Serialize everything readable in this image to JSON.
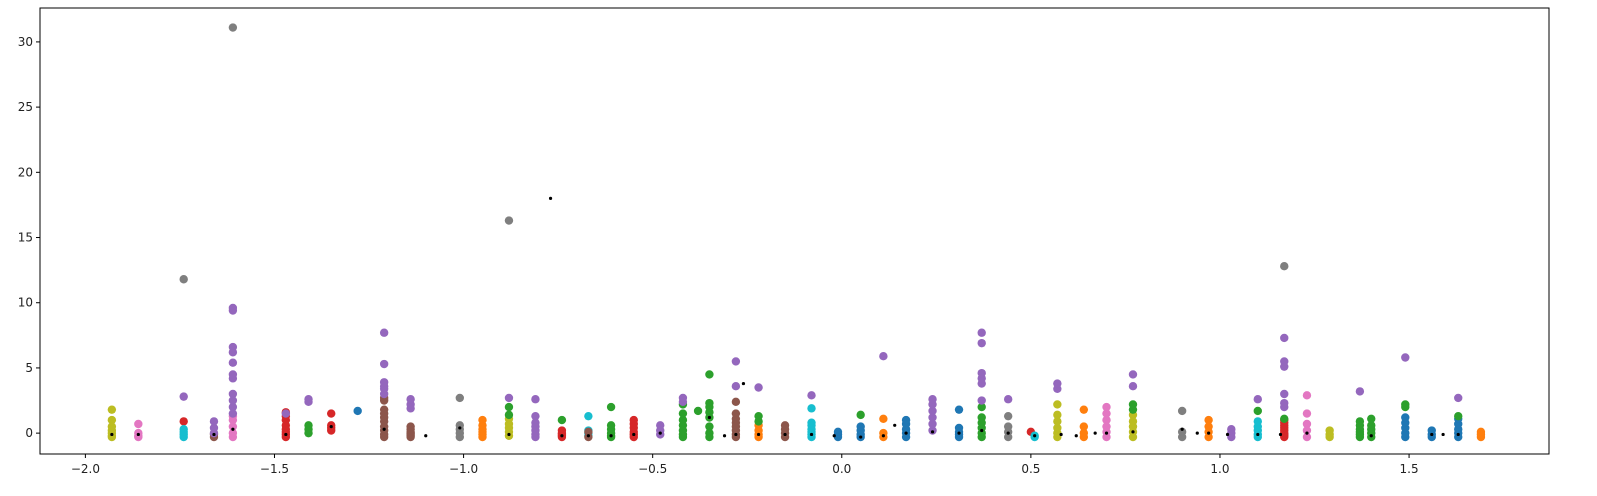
{
  "chart_data": {
    "type": "scatter",
    "title": "",
    "xlabel": "",
    "ylabel": "",
    "xlim": [
      -2.12,
      1.87
    ],
    "ylim": [
      -1.6,
      32.6
    ],
    "x_ticks": [
      -2.0,
      -1.5,
      -1.0,
      -0.5,
      0.0,
      0.5,
      1.0,
      1.5
    ],
    "x_tick_labels": [
      "−2.0",
      "−1.5",
      "−1.0",
      "−0.5",
      "0.0",
      "0.5",
      "1.0",
      "1.5"
    ],
    "y_ticks": [
      0,
      5,
      10,
      15,
      20,
      25,
      30
    ],
    "y_tick_labels": [
      "0",
      "5",
      "10",
      "15",
      "20",
      "25",
      "30"
    ],
    "grid": false,
    "legend": false,
    "palette": [
      "#1f77b4",
      "#ff7f0e",
      "#2ca02c",
      "#d62728",
      "#9467bd",
      "#8c564b",
      "#e377c2",
      "#7f7f7f",
      "#bcbd22",
      "#17becf"
    ],
    "groups": [
      {
        "x": -1.93,
        "color": "#bcbd22",
        "y": [
          -0.3,
          -0.2,
          0.0,
          0.2,
          0.5,
          1.0,
          1.8
        ]
      },
      {
        "x": -1.86,
        "color": "#e377c2",
        "y": [
          -0.3,
          -0.25,
          -0.2,
          0.0,
          0.7
        ]
      },
      {
        "x": -1.74,
        "color": "#d62728",
        "y": [
          0.9
        ]
      },
      {
        "x": -1.74,
        "color": "#17becf",
        "y": [
          -0.3,
          -0.1,
          0.1,
          0.3
        ]
      },
      {
        "x": -1.74,
        "color": "#9467bd",
        "y": [
          2.8
        ]
      },
      {
        "x": -1.74,
        "color": "#7f7f7f",
        "y": [
          11.8
        ]
      },
      {
        "x": -1.66,
        "color": "#8c564b",
        "y": [
          -0.3,
          -0.1
        ]
      },
      {
        "x": -1.66,
        "color": "#9467bd",
        "y": [
          0.0,
          0.4,
          0.9
        ]
      },
      {
        "x": -1.61,
        "color": "#e377c2",
        "y": [
          -0.3,
          0.0,
          0.5,
          1.0,
          1.3
        ]
      },
      {
        "x": -1.61,
        "color": "#9467bd",
        "y": [
          1.5,
          2.0,
          2.5,
          3.0,
          4.2,
          4.5,
          5.4,
          6.2,
          6.6,
          9.4,
          9.6
        ]
      },
      {
        "x": -1.61,
        "color": "#7f7f7f",
        "y": [
          31.1
        ]
      },
      {
        "x": -1.47,
        "color": "#d62728",
        "y": [
          -0.3,
          -0.1,
          0.1,
          0.3,
          0.6,
          1.0,
          1.3,
          1.6
        ]
      },
      {
        "x": -1.47,
        "color": "#9467bd",
        "y": [
          1.5
        ]
      },
      {
        "x": -1.41,
        "color": "#2ca02c",
        "y": [
          0.0,
          0.3,
          0.6
        ]
      },
      {
        "x": -1.41,
        "color": "#9467bd",
        "y": [
          2.4,
          2.6
        ]
      },
      {
        "x": -1.35,
        "color": "#d62728",
        "y": [
          0.2,
          0.4,
          0.6,
          1.5
        ]
      },
      {
        "x": -1.28,
        "color": "#1f77b4",
        "y": [
          1.7
        ]
      },
      {
        "x": -1.21,
        "color": "#8c564b",
        "y": [
          -0.3,
          -0.1,
          0.2,
          0.5,
          0.9,
          1.2,
          1.5,
          1.8,
          2.5,
          2.7
        ]
      },
      {
        "x": -1.21,
        "color": "#9467bd",
        "y": [
          3.0,
          3.4,
          3.6,
          3.9,
          5.3,
          7.7
        ]
      },
      {
        "x": -1.14,
        "color": "#8c564b",
        "y": [
          -0.3,
          -0.2,
          -0.1,
          0.0,
          0.1,
          0.3,
          0.5
        ]
      },
      {
        "x": -1.14,
        "color": "#9467bd",
        "y": [
          1.9,
          2.2,
          2.6
        ]
      },
      {
        "x": -1.01,
        "color": "#7f7f7f",
        "y": [
          -0.3,
          0.0,
          0.3,
          0.6,
          2.7
        ]
      },
      {
        "x": -0.95,
        "color": "#ff7f0e",
        "y": [
          -0.3,
          -0.1,
          0.1,
          0.3,
          0.6,
          1.0
        ]
      },
      {
        "x": -0.88,
        "color": "#bcbd22",
        "y": [
          -0.2,
          0.1,
          0.4,
          0.7,
          1.1
        ]
      },
      {
        "x": -0.88,
        "color": "#2ca02c",
        "y": [
          1.4,
          2.0
        ]
      },
      {
        "x": -0.88,
        "color": "#9467bd",
        "y": [
          2.7
        ]
      },
      {
        "x": -0.88,
        "color": "#7f7f7f",
        "y": [
          16.3
        ]
      },
      {
        "x": -0.81,
        "color": "#9467bd",
        "y": [
          -0.3,
          -0.1,
          0.2,
          0.5,
          0.8,
          1.3,
          2.6
        ]
      },
      {
        "x": -0.74,
        "color": "#d62728",
        "y": [
          -0.3,
          -0.2,
          -0.1,
          0.0,
          0.2
        ]
      },
      {
        "x": -0.74,
        "color": "#2ca02c",
        "y": [
          1.0
        ]
      },
      {
        "x": -0.67,
        "color": "#17becf",
        "y": [
          -0.2,
          0.0,
          0.2,
          1.3
        ]
      },
      {
        "x": -0.67,
        "color": "#8c564b",
        "y": [
          -0.3,
          0.1
        ]
      },
      {
        "x": -0.61,
        "color": "#2ca02c",
        "y": [
          -0.3,
          -0.2,
          0.0,
          0.3,
          0.6,
          2.0
        ]
      },
      {
        "x": -0.55,
        "color": "#d62728",
        "y": [
          -0.3,
          -0.1,
          0.1,
          0.4,
          0.7,
          1.0
        ]
      },
      {
        "x": -0.48,
        "color": "#9467bd",
        "y": [
          -0.1,
          0.2,
          0.6
        ]
      },
      {
        "x": -0.42,
        "color": "#2ca02c",
        "y": [
          -0.3,
          -0.1,
          0.2,
          0.6,
          1.0,
          1.5,
          2.2
        ]
      },
      {
        "x": -0.42,
        "color": "#9467bd",
        "y": [
          2.4,
          2.7
        ]
      },
      {
        "x": -0.38,
        "color": "#2ca02c",
        "y": [
          1.7
        ]
      },
      {
        "x": -0.35,
        "color": "#2ca02c",
        "y": [
          -0.3,
          0.0,
          0.5,
          1.2,
          1.6,
          2.0,
          2.3,
          4.5
        ]
      },
      {
        "x": -0.28,
        "color": "#8c564b",
        "y": [
          -0.3,
          -0.1,
          0.2,
          0.5,
          0.8,
          1.1,
          1.5,
          2.4
        ]
      },
      {
        "x": -0.28,
        "color": "#9467bd",
        "y": [
          3.6,
          5.5
        ]
      },
      {
        "x": -0.22,
        "color": "#ff7f0e",
        "y": [
          -0.3,
          -0.1,
          0.2,
          0.6
        ]
      },
      {
        "x": -0.22,
        "color": "#2ca02c",
        "y": [
          0.9,
          1.3
        ]
      },
      {
        "x": -0.22,
        "color": "#9467bd",
        "y": [
          3.5
        ]
      },
      {
        "x": -0.15,
        "color": "#8c564b",
        "y": [
          -0.3,
          0.0,
          0.3,
          0.6
        ]
      },
      {
        "x": -0.08,
        "color": "#17becf",
        "y": [
          -0.3,
          -0.1,
          0.1,
          0.3,
          0.6,
          0.8,
          1.9
        ]
      },
      {
        "x": -0.08,
        "color": "#9467bd",
        "y": [
          2.9
        ]
      },
      {
        "x": -0.01,
        "color": "#1f77b4",
        "y": [
          -0.3,
          -0.1,
          0.1
        ]
      },
      {
        "x": 0.05,
        "color": "#2ca02c",
        "y": [
          1.4
        ]
      },
      {
        "x": 0.05,
        "color": "#1f77b4",
        "y": [
          -0.3,
          -0.1,
          0.2,
          0.5
        ]
      },
      {
        "x": 0.11,
        "color": "#ff7f0e",
        "y": [
          -0.3,
          0.0,
          1.1
        ]
      },
      {
        "x": 0.11,
        "color": "#9467bd",
        "y": [
          5.9
        ]
      },
      {
        "x": 0.17,
        "color": "#1f77b4",
        "y": [
          -0.3,
          0.0,
          0.3,
          0.7,
          1.0
        ]
      },
      {
        "x": 0.24,
        "color": "#9467bd",
        "y": [
          0.2,
          0.7,
          1.2,
          1.7,
          2.2,
          2.6
        ]
      },
      {
        "x": 0.31,
        "color": "#1f77b4",
        "y": [
          -0.3,
          -0.1,
          0.1,
          0.4,
          1.8
        ]
      },
      {
        "x": 0.37,
        "color": "#2ca02c",
        "y": [
          -0.3,
          0.0,
          0.4,
          0.8,
          1.2,
          2.0
        ]
      },
      {
        "x": 0.37,
        "color": "#9467bd",
        "y": [
          2.5,
          3.8,
          4.2,
          4.6,
          6.9,
          7.7
        ]
      },
      {
        "x": 0.44,
        "color": "#7f7f7f",
        "y": [
          -0.3,
          0.1,
          0.5,
          1.3
        ]
      },
      {
        "x": 0.44,
        "color": "#9467bd",
        "y": [
          2.6
        ]
      },
      {
        "x": 0.5,
        "color": "#d62728",
        "y": [
          0.1
        ]
      },
      {
        "x": 0.51,
        "color": "#17becf",
        "y": [
          -0.3,
          -0.2
        ]
      },
      {
        "x": 0.57,
        "color": "#bcbd22",
        "y": [
          -0.3,
          0.0,
          0.4,
          0.9,
          1.4,
          2.2
        ]
      },
      {
        "x": 0.57,
        "color": "#9467bd",
        "y": [
          3.4,
          3.8
        ]
      },
      {
        "x": 0.64,
        "color": "#ff7f0e",
        "y": [
          -0.3,
          0.0,
          0.5,
          1.8
        ]
      },
      {
        "x": 0.7,
        "color": "#e377c2",
        "y": [
          -0.3,
          0.1,
          0.5,
          1.0,
          1.5,
          2.0
        ]
      },
      {
        "x": 0.77,
        "color": "#bcbd22",
        "y": [
          -0.3,
          0.1,
          0.5,
          0.9,
          1.4
        ]
      },
      {
        "x": 0.77,
        "color": "#2ca02c",
        "y": [
          1.8,
          2.2
        ]
      },
      {
        "x": 0.77,
        "color": "#9467bd",
        "y": [
          3.6,
          4.5
        ]
      },
      {
        "x": 0.9,
        "color": "#7f7f7f",
        "y": [
          -0.3,
          0.1,
          1.7
        ]
      },
      {
        "x": 0.97,
        "color": "#ff7f0e",
        "y": [
          -0.3,
          0.1,
          0.5,
          1.0
        ]
      },
      {
        "x": 1.03,
        "color": "#9467bd",
        "y": [
          -0.3,
          0.0,
          0.3
        ]
      },
      {
        "x": 1.1,
        "color": "#17becf",
        "y": [
          -0.3,
          -0.1,
          0.2,
          0.5,
          0.9
        ]
      },
      {
        "x": 1.1,
        "color": "#2ca02c",
        "y": [
          1.7
        ]
      },
      {
        "x": 1.1,
        "color": "#9467bd",
        "y": [
          2.6
        ]
      },
      {
        "x": 1.17,
        "color": "#d62728",
        "y": [
          -0.3,
          -0.2,
          -0.1,
          0.0,
          0.2,
          0.4,
          0.6,
          0.8,
          1.0
        ]
      },
      {
        "x": 1.17,
        "color": "#2ca02c",
        "y": [
          1.1
        ]
      },
      {
        "x": 1.17,
        "color": "#9467bd",
        "y": [
          2.0,
          2.3,
          3.0,
          5.1,
          5.5,
          7.3
        ]
      },
      {
        "x": 1.17,
        "color": "#7f7f7f",
        "y": [
          12.8
        ]
      },
      {
        "x": 1.23,
        "color": "#e377c2",
        "y": [
          -0.3,
          0.2,
          0.7,
          1.5,
          2.9
        ]
      },
      {
        "x": 1.29,
        "color": "#bcbd22",
        "y": [
          -0.3,
          -0.1,
          0.2
        ]
      },
      {
        "x": 1.37,
        "color": "#2ca02c",
        "y": [
          -0.3,
          -0.1,
          0.1,
          0.3,
          0.6,
          0.9
        ]
      },
      {
        "x": 1.37,
        "color": "#9467bd",
        "y": [
          3.2
        ]
      },
      {
        "x": 1.4,
        "color": "#2ca02c",
        "y": [
          -0.3,
          0.0,
          0.3,
          0.6,
          1.1
        ]
      },
      {
        "x": 1.49,
        "color": "#1f77b4",
        "y": [
          -0.3,
          0.0,
          0.4,
          0.8,
          1.2
        ]
      },
      {
        "x": 1.49,
        "color": "#2ca02c",
        "y": [
          2.0,
          2.2
        ]
      },
      {
        "x": 1.49,
        "color": "#9467bd",
        "y": [
          5.8
        ]
      },
      {
        "x": 1.56,
        "color": "#1f77b4",
        "y": [
          -0.3,
          -0.1,
          0.2
        ]
      },
      {
        "x": 1.63,
        "color": "#1f77b4",
        "y": [
          -0.3,
          0.0,
          0.3,
          0.7,
          1.1
        ]
      },
      {
        "x": 1.63,
        "color": "#2ca02c",
        "y": [
          1.3
        ]
      },
      {
        "x": 1.63,
        "color": "#9467bd",
        "y": [
          2.7
        ]
      },
      {
        "x": 1.69,
        "color": "#ff7f0e",
        "y": [
          -0.3,
          -0.1,
          0.1
        ]
      }
    ],
    "black_points": [
      {
        "x": -1.93,
        "y": -0.1
      },
      {
        "x": -1.86,
        "y": -0.1
      },
      {
        "x": -1.66,
        "y": -0.1
      },
      {
        "x": -1.61,
        "y": 0.3
      },
      {
        "x": -1.47,
        "y": -0.1
      },
      {
        "x": -1.35,
        "y": 0.5
      },
      {
        "x": -1.21,
        "y": 0.3
      },
      {
        "x": -1.1,
        "y": -0.2
      },
      {
        "x": -1.01,
        "y": 0.4
      },
      {
        "x": -0.88,
        "y": -0.1
      },
      {
        "x": -0.77,
        "y": 18.0
      },
      {
        "x": -0.74,
        "y": -0.2
      },
      {
        "x": -0.67,
        "y": -0.2
      },
      {
        "x": -0.61,
        "y": -0.2
      },
      {
        "x": -0.55,
        "y": -0.1
      },
      {
        "x": -0.48,
        "y": 0.0
      },
      {
        "x": -0.35,
        "y": 1.2
      },
      {
        "x": -0.31,
        "y": -0.2
      },
      {
        "x": -0.28,
        "y": -0.1
      },
      {
        "x": -0.26,
        "y": 3.8
      },
      {
        "x": -0.22,
        "y": -0.1
      },
      {
        "x": -0.15,
        "y": -0.1
      },
      {
        "x": -0.08,
        "y": -0.1
      },
      {
        "x": -0.02,
        "y": -0.2
      },
      {
        "x": 0.05,
        "y": -0.3
      },
      {
        "x": 0.11,
        "y": -0.2
      },
      {
        "x": 0.14,
        "y": 0.6
      },
      {
        "x": 0.17,
        "y": 0.0
      },
      {
        "x": 0.24,
        "y": 0.1
      },
      {
        "x": 0.31,
        "y": 0.0
      },
      {
        "x": 0.37,
        "y": 0.2
      },
      {
        "x": 0.44,
        "y": 0.0
      },
      {
        "x": 0.51,
        "y": -0.2
      },
      {
        "x": 0.58,
        "y": -0.1
      },
      {
        "x": 0.62,
        "y": -0.2
      },
      {
        "x": 0.67,
        "y": 0.0
      },
      {
        "x": 0.7,
        "y": 0.0
      },
      {
        "x": 0.77,
        "y": 0.1
      },
      {
        "x": 0.9,
        "y": 0.3
      },
      {
        "x": 0.94,
        "y": 0.0
      },
      {
        "x": 0.97,
        "y": 0.0
      },
      {
        "x": 1.02,
        "y": -0.1
      },
      {
        "x": 1.1,
        "y": -0.1
      },
      {
        "x": 1.16,
        "y": -0.1
      },
      {
        "x": 1.23,
        "y": 0.0
      },
      {
        "x": 1.4,
        "y": -0.2
      },
      {
        "x": 1.56,
        "y": -0.1
      },
      {
        "x": 1.59,
        "y": -0.1
      },
      {
        "x": 1.63,
        "y": -0.1
      }
    ]
  }
}
